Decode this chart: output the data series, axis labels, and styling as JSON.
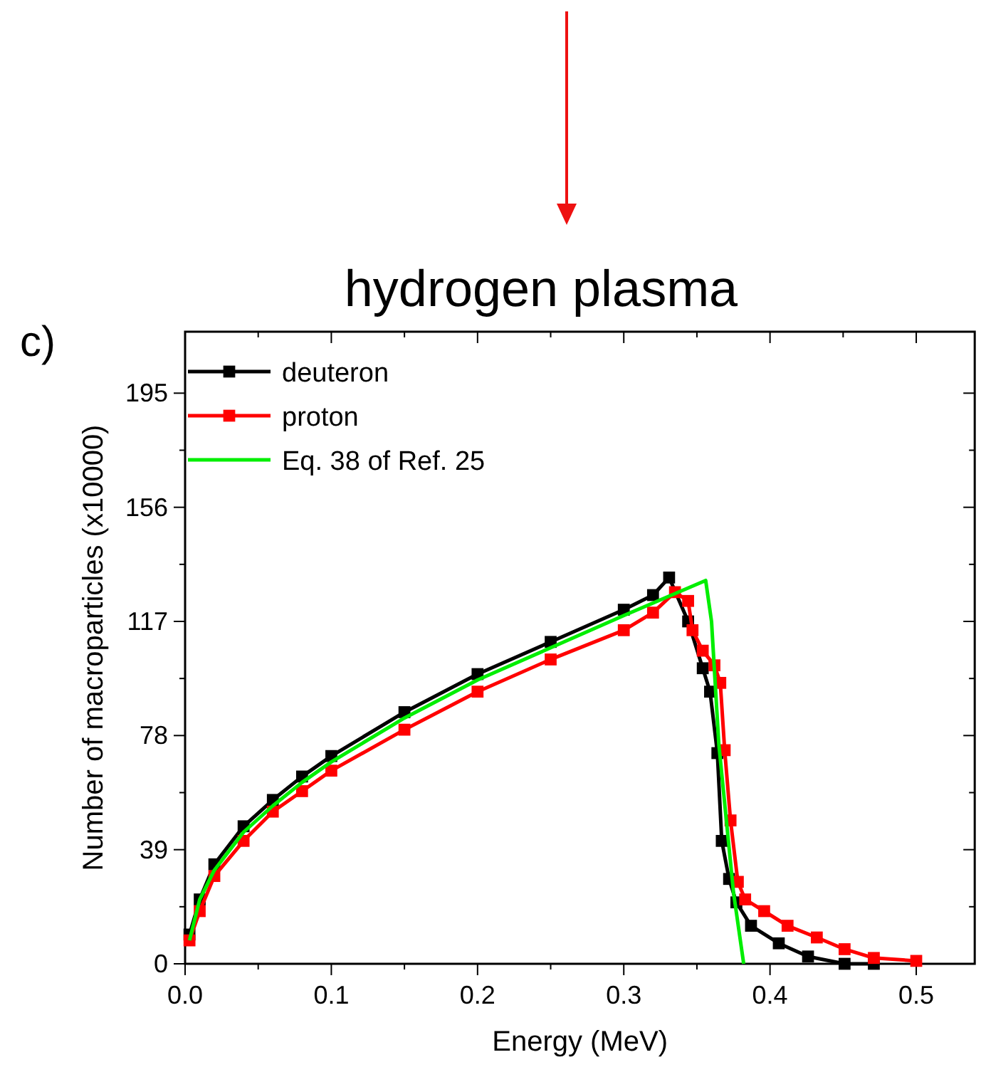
{
  "chart_data": {
    "type": "line",
    "title": "hydrogen plasma",
    "xlabel": "Energy (MeV)",
    "ylabel": "Number of macroparticles (x10000)",
    "annotations": [
      "c)"
    ],
    "xlim": [
      0,
      0.54
    ],
    "ylim": [
      0,
      216
    ],
    "xticks": [
      {
        "value": 0,
        "label": "0.0"
      },
      {
        "value": 0.05,
        "label": null
      },
      {
        "value": 0.1,
        "label": "0.1"
      },
      {
        "value": 0.15,
        "label": null
      },
      {
        "value": 0.2,
        "label": "0.2"
      },
      {
        "value": 0.25,
        "label": null
      },
      {
        "value": 0.3,
        "label": "0.3"
      },
      {
        "value": 0.35,
        "label": null
      },
      {
        "value": 0.4,
        "label": "0.4"
      },
      {
        "value": 0.45,
        "label": null
      },
      {
        "value": 0.5,
        "label": "0.5"
      }
    ],
    "yticks": [
      0,
      {
        "value": 19.5,
        "label": null
      },
      39,
      {
        "value": 58.5,
        "label": null
      },
      78,
      {
        "value": 97.5,
        "label": null
      },
      117,
      {
        "value": 136.5,
        "label": null
      },
      156,
      {
        "value": 175.5,
        "label": null
      },
      195
    ],
    "grid": false,
    "legend": "top left",
    "line_style": "solid",
    "series": [
      {
        "name": "deuteron",
        "color": "#000000",
        "marker": "square",
        "x": [
          0.003,
          0.01,
          0.02,
          0.04,
          0.06,
          0.08,
          0.1,
          0.15,
          0.2,
          0.25,
          0.3,
          0.32,
          0.331,
          0.344,
          0.354,
          0.359,
          0.364,
          0.367,
          0.372,
          0.377,
          0.387,
          0.406,
          0.426,
          0.451,
          0.471
        ],
        "values": [
          10,
          22,
          34,
          47,
          56,
          64,
          71,
          86,
          99,
          110,
          121,
          126,
          132,
          117,
          101,
          93,
          72,
          42,
          29,
          21,
          13,
          7,
          2.5,
          0,
          0
        ]
      },
      {
        "name": "proton",
        "color": "#ff0000",
        "marker": "square",
        "x": [
          0.003,
          0.01,
          0.02,
          0.04,
          0.06,
          0.08,
          0.1,
          0.15,
          0.2,
          0.25,
          0.3,
          0.32,
          0.335,
          0.344,
          0.347,
          0.354,
          0.362,
          0.366,
          0.369,
          0.373,
          0.378,
          0.383,
          0.396,
          0.412,
          0.432,
          0.451,
          0.471,
          0.5
        ],
        "values": [
          8,
          18,
          30,
          42,
          52,
          59,
          66,
          80,
          93,
          104,
          114,
          120,
          127,
          124,
          114,
          107,
          102,
          96,
          73,
          49,
          28,
          22,
          18,
          13,
          9,
          5,
          2,
          1
        ]
      },
      {
        "name": "Eq. 38 of Ref. 25",
        "color": "#00ee00",
        "marker": "none",
        "x": [
          0.003,
          0.01,
          0.02,
          0.04,
          0.06,
          0.08,
          0.1,
          0.15,
          0.2,
          0.25,
          0.3,
          0.356,
          0.36,
          0.365,
          0.375,
          0.382
        ],
        "values": [
          8,
          22,
          32,
          45,
          54,
          62,
          69,
          84,
          97,
          108,
          119,
          131,
          117,
          75,
          24.5,
          0
        ]
      }
    ]
  }
}
